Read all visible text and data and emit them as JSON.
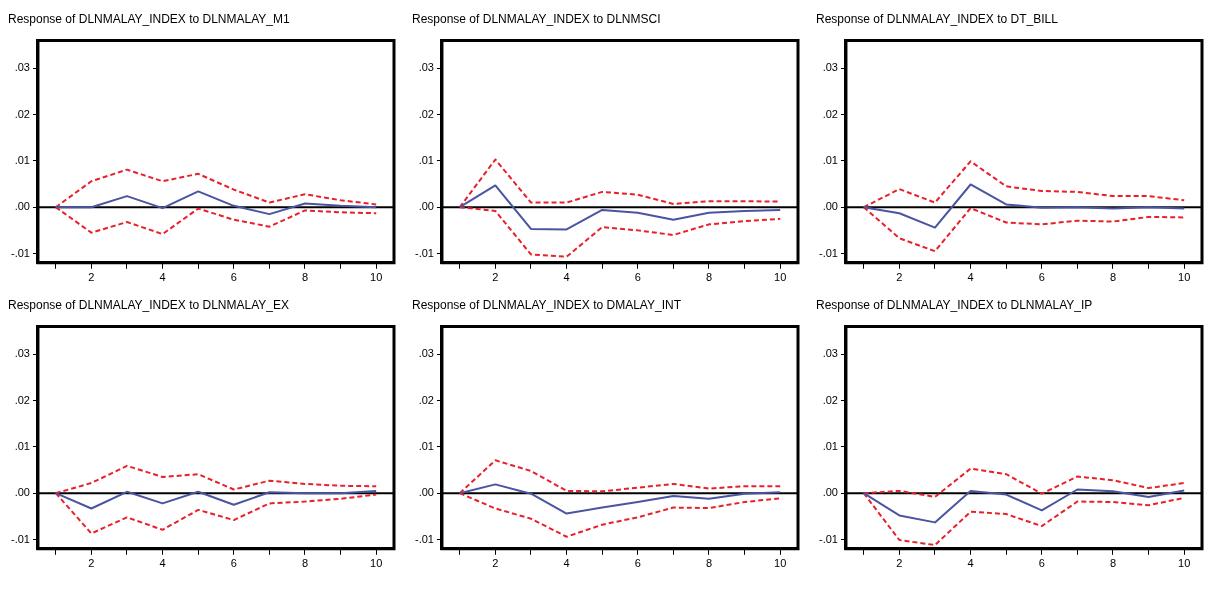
{
  "chart_data": [
    {
      "type": "line",
      "title": "Response of DLNMALAY_INDEX to DLNMALAY_M1",
      "x": [
        1,
        2,
        3,
        4,
        5,
        6,
        7,
        8,
        9,
        10
      ],
      "xlim": [
        0.5,
        10.5
      ],
      "xticks": [
        {
          "value": 1,
          "label": null
        },
        2,
        {
          "value": 3,
          "label": null
        },
        4,
        {
          "value": 5,
          "label": null
        },
        6,
        {
          "value": 7,
          "label": null
        },
        8,
        {
          "value": 9,
          "label": null
        },
        10
      ],
      "ylim": [
        -0.012,
        0.036
      ],
      "yticks": [
        {
          "value": -0.01,
          "label": "-.01"
        },
        {
          "value": 0,
          "label": ".00"
        },
        {
          "value": 0.01,
          "label": ".01"
        },
        {
          "value": 0.02,
          "label": ".02"
        },
        {
          "value": 0.03,
          "label": ".03"
        }
      ],
      "grid": false,
      "legend": false,
      "ref_lines": [
        {
          "axis": "y",
          "value": 0,
          "color": "#000000"
        }
      ],
      "series": [
        {
          "color": "#4a55a2",
          "line_style": "solid",
          "values": [
            0,
            0,
            0.0024,
            -0.0002,
            0.0034,
            0.0003,
            -0.0015,
            0.0008,
            0.0003,
            0
          ]
        },
        {
          "color": "#e8202a",
          "line_style": "dashed",
          "values": [
            0,
            0.0056,
            0.0081,
            0.0056,
            0.0072,
            0.0038,
            0.001,
            0.0028,
            0.0015,
            0.0006
          ]
        },
        {
          "color": "#e8202a",
          "line_style": "dashed",
          "values": [
            0,
            -0.0055,
            -0.0032,
            -0.0058,
            -0.0003,
            -0.0027,
            -0.0042,
            -0.0007,
            -0.0011,
            -0.0013
          ]
        }
      ]
    },
    {
      "type": "line",
      "title": "Response of DLNMALAY_INDEX to DLNMSCI",
      "x": [
        1,
        2,
        3,
        4,
        5,
        6,
        7,
        8,
        9,
        10
      ],
      "xlim": [
        0.5,
        10.5
      ],
      "xticks": [
        {
          "value": 1,
          "label": null
        },
        2,
        {
          "value": 3,
          "label": null
        },
        4,
        {
          "value": 5,
          "label": null
        },
        6,
        {
          "value": 7,
          "label": null
        },
        8,
        {
          "value": 9,
          "label": null
        },
        10
      ],
      "ylim": [
        -0.012,
        0.036
      ],
      "yticks": [
        {
          "value": -0.01,
          "label": "-.01"
        },
        {
          "value": 0,
          "label": ".00"
        },
        {
          "value": 0.01,
          "label": ".01"
        },
        {
          "value": 0.02,
          "label": ".02"
        },
        {
          "value": 0.03,
          "label": ".03"
        }
      ],
      "grid": false,
      "legend": false,
      "ref_lines": [
        {
          "axis": "y",
          "value": 0,
          "color": "#000000"
        }
      ],
      "series": [
        {
          "color": "#4a55a2",
          "line_style": "solid",
          "values": [
            0,
            0.0047,
            -0.0047,
            -0.0048,
            -0.0006,
            -0.0012,
            -0.0027,
            -0.0012,
            -0.0008,
            -0.0006
          ]
        },
        {
          "color": "#e8202a",
          "line_style": "dashed",
          "values": [
            0,
            0.0103,
            0.001,
            0.001,
            0.0033,
            0.0027,
            0.0007,
            0.0013,
            0.0013,
            0.0012
          ]
        },
        {
          "color": "#e8202a",
          "line_style": "dashed",
          "values": [
            0,
            -0.0008,
            -0.0102,
            -0.0107,
            -0.0043,
            -0.005,
            -0.006,
            -0.0037,
            -0.003,
            -0.0025
          ]
        }
      ]
    },
    {
      "type": "line",
      "title": "Response of DLNMALAY_INDEX to DT_BILL",
      "x": [
        1,
        2,
        3,
        4,
        5,
        6,
        7,
        8,
        9,
        10
      ],
      "xlim": [
        0.5,
        10.5
      ],
      "xticks": [
        {
          "value": 1,
          "label": null
        },
        2,
        {
          "value": 3,
          "label": null
        },
        4,
        {
          "value": 5,
          "label": null
        },
        6,
        {
          "value": 7,
          "label": null
        },
        8,
        {
          "value": 9,
          "label": null
        },
        10
      ],
      "ylim": [
        -0.012,
        0.036
      ],
      "yticks": [
        {
          "value": -0.01,
          "label": "-.01"
        },
        {
          "value": 0,
          "label": ".00"
        },
        {
          "value": 0.01,
          "label": ".01"
        },
        {
          "value": 0.02,
          "label": ".02"
        },
        {
          "value": 0.03,
          "label": ".03"
        }
      ],
      "grid": false,
      "legend": false,
      "ref_lines": [
        {
          "axis": "y",
          "value": 0,
          "color": "#000000"
        }
      ],
      "series": [
        {
          "color": "#4a55a2",
          "line_style": "solid",
          "values": [
            0,
            -0.0013,
            -0.0044,
            0.0049,
            0.0006,
            -0.0001,
            0,
            -0.0003,
            0,
            -0.0003
          ]
        },
        {
          "color": "#e8202a",
          "line_style": "dashed",
          "values": [
            0,
            0.0039,
            0.001,
            0.0099,
            0.0045,
            0.0035,
            0.0033,
            0.0024,
            0.0024,
            0.0015
          ]
        },
        {
          "color": "#e8202a",
          "line_style": "dashed",
          "values": [
            0,
            -0.0067,
            -0.0095,
            -0.0002,
            -0.0033,
            -0.0037,
            -0.0029,
            -0.0031,
            -0.0021,
            -0.0022
          ]
        }
      ]
    },
    {
      "type": "line",
      "title": "Response of DLNMALAY_INDEX to DLNMALAY_EX",
      "x": [
        1,
        2,
        3,
        4,
        5,
        6,
        7,
        8,
        9,
        10
      ],
      "xlim": [
        0.5,
        10.5
      ],
      "xticks": [
        {
          "value": 1,
          "label": null
        },
        2,
        {
          "value": 3,
          "label": null
        },
        4,
        {
          "value": 5,
          "label": null
        },
        6,
        {
          "value": 7,
          "label": null
        },
        8,
        {
          "value": 9,
          "label": null
        },
        10
      ],
      "ylim": [
        -0.012,
        0.036
      ],
      "yticks": [
        {
          "value": -0.01,
          "label": "-.01"
        },
        {
          "value": 0,
          "label": ".00"
        },
        {
          "value": 0.01,
          "label": ".01"
        },
        {
          "value": 0.02,
          "label": ".02"
        },
        {
          "value": 0.03,
          "label": ".03"
        }
      ],
      "grid": false,
      "legend": false,
      "ref_lines": [
        {
          "axis": "y",
          "value": 0,
          "color": "#000000"
        }
      ],
      "series": [
        {
          "color": "#4a55a2",
          "line_style": "solid",
          "values": [
            0,
            -0.0033,
            0.0003,
            -0.0022,
            0.0003,
            -0.0025,
            0.0002,
            0,
            0,
            0.0005
          ]
        },
        {
          "color": "#e8202a",
          "line_style": "dashed",
          "values": [
            0,
            0.0022,
            0.0059,
            0.0035,
            0.0041,
            0.0008,
            0.0027,
            0.002,
            0.0016,
            0.0015
          ]
        },
        {
          "color": "#e8202a",
          "line_style": "dashed",
          "values": [
            0,
            -0.0087,
            -0.0052,
            -0.0079,
            -0.0036,
            -0.0058,
            -0.0022,
            -0.0018,
            -0.0012,
            -0.0003
          ]
        }
      ]
    },
    {
      "type": "line",
      "title": "Response of DLNMALAY_INDEX to DMALAY_INT",
      "x": [
        1,
        2,
        3,
        4,
        5,
        6,
        7,
        8,
        9,
        10
      ],
      "xlim": [
        0.5,
        10.5
      ],
      "xticks": [
        {
          "value": 1,
          "label": null
        },
        2,
        {
          "value": 3,
          "label": null
        },
        4,
        {
          "value": 5,
          "label": null
        },
        6,
        {
          "value": 7,
          "label": null
        },
        8,
        {
          "value": 9,
          "label": null
        },
        10
      ],
      "ylim": [
        -0.012,
        0.036
      ],
      "yticks": [
        {
          "value": -0.01,
          "label": "-.01"
        },
        {
          "value": 0,
          "label": ".00"
        },
        {
          "value": 0.01,
          "label": ".01"
        },
        {
          "value": 0.02,
          "label": ".02"
        },
        {
          "value": 0.03,
          "label": ".03"
        }
      ],
      "grid": false,
      "legend": false,
      "ref_lines": [
        {
          "axis": "y",
          "value": 0,
          "color": "#000000"
        }
      ],
      "series": [
        {
          "color": "#4a55a2",
          "line_style": "solid",
          "values": [
            0,
            0.0019,
            -0.0001,
            -0.0044,
            -0.0031,
            -0.0019,
            -0.0006,
            -0.0012,
            -0.0001,
            0.0002
          ]
        },
        {
          "color": "#e8202a",
          "line_style": "dashed",
          "values": [
            0,
            0.0071,
            0.0048,
            0.0005,
            0.0004,
            0.0012,
            0.002,
            0.001,
            0.0015,
            0.0015
          ]
        },
        {
          "color": "#e8202a",
          "line_style": "dashed",
          "values": [
            0,
            -0.0033,
            -0.0055,
            -0.0094,
            -0.0068,
            -0.0052,
            -0.0031,
            -0.0032,
            -0.0019,
            -0.0011
          ]
        }
      ]
    },
    {
      "type": "line",
      "title": "Response of DLNMALAY_INDEX to DLNMALAY_IP",
      "x": [
        1,
        2,
        3,
        4,
        5,
        6,
        7,
        8,
        9,
        10
      ],
      "xlim": [
        0.5,
        10.5
      ],
      "xticks": [
        {
          "value": 1,
          "label": null
        },
        2,
        {
          "value": 3,
          "label": null
        },
        4,
        {
          "value": 5,
          "label": null
        },
        6,
        {
          "value": 7,
          "label": null
        },
        8,
        {
          "value": 9,
          "label": null
        },
        10
      ],
      "ylim": [
        -0.012,
        0.036
      ],
      "yticks": [
        {
          "value": -0.01,
          "label": "-.01"
        },
        {
          "value": 0,
          "label": ".00"
        },
        {
          "value": 0.01,
          "label": ".01"
        },
        {
          "value": 0.02,
          "label": ".02"
        },
        {
          "value": 0.03,
          "label": ".03"
        }
      ],
      "grid": false,
      "legend": false,
      "ref_lines": [
        {
          "axis": "y",
          "value": 0,
          "color": "#000000"
        }
      ],
      "series": [
        {
          "color": "#4a55a2",
          "line_style": "solid",
          "values": [
            0,
            -0.0048,
            -0.0063,
            0.0005,
            -0.0003,
            -0.0037,
            0.0008,
            0.0004,
            -0.0008,
            0.0006
          ]
        },
        {
          "color": "#e8202a",
          "line_style": "dashed",
          "values": [
            0,
            0.0005,
            -0.0008,
            0.0053,
            0.0041,
            -0.0001,
            0.0036,
            0.0028,
            0.0011,
            0.0022
          ]
        },
        {
          "color": "#e8202a",
          "line_style": "dashed",
          "values": [
            0,
            -0.0101,
            -0.0112,
            -0.004,
            -0.0045,
            -0.0071,
            -0.0018,
            -0.0019,
            -0.0026,
            -0.001
          ]
        }
      ]
    }
  ]
}
